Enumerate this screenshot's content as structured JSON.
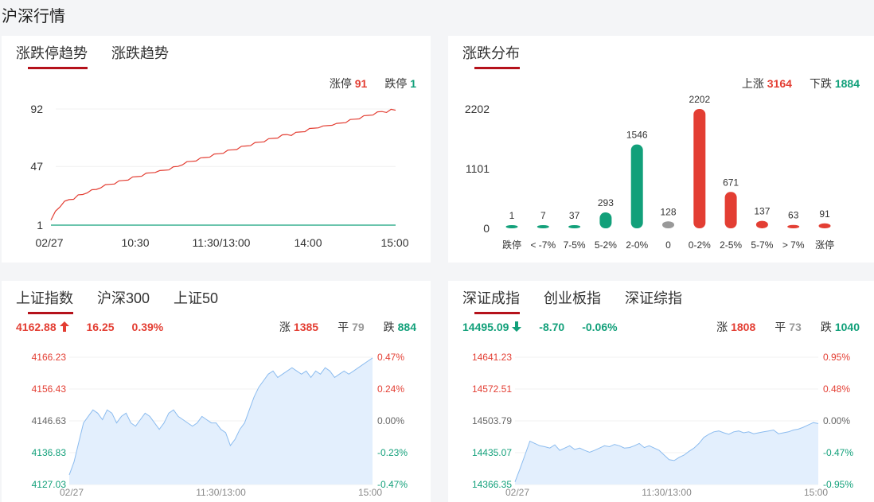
{
  "page_title": "沪深行情",
  "panel1": {
    "tabs": [
      {
        "label": "涨跌停趋势"
      },
      {
        "label": "涨跌趋势"
      }
    ],
    "counts": {
      "limit_up_label": "涨停",
      "limit_up": "91",
      "limit_down_label": "跌停",
      "limit_down": "1"
    },
    "colors": {
      "up": "#e33e33",
      "down": "#12a07a"
    }
  },
  "panel2": {
    "tabs": [
      {
        "label": "涨跌分布"
      }
    ],
    "counts": {
      "up_label": "上涨",
      "up": "3164",
      "down_label": "下跌",
      "down": "1884"
    }
  },
  "panel3": {
    "tabs": [
      {
        "label": "上证指数"
      },
      {
        "label": "沪深300"
      },
      {
        "label": "上证50"
      }
    ],
    "price": "4162.88",
    "arrow": "up-arrow-icon",
    "change": "16.25",
    "pct": "0.39%",
    "up_label": "涨",
    "up": "1385",
    "flat_label": "平",
    "flat": "79",
    "down_label": "跌",
    "down": "884"
  },
  "panel4": {
    "tabs": [
      {
        "label": "深证成指"
      },
      {
        "label": "创业板指"
      },
      {
        "label": "深证综指"
      }
    ],
    "price": "14495.09",
    "arrow": "down-arrow-icon",
    "change": "-8.70",
    "pct": "-0.06%",
    "up_label": "涨",
    "up": "1808",
    "flat_label": "平",
    "flat": "73",
    "down_label": "跌",
    "down": "1040"
  },
  "chart_data": [
    {
      "type": "line",
      "x_ticks": [
        "02/27",
        "10:30",
        "11:30/13:00",
        "14:00",
        "15:00"
      ],
      "y_ticks": [
        "92",
        "47",
        "1"
      ],
      "ylim": [
        1,
        92
      ],
      "series": [
        {
          "name": "涨停",
          "color": "#e33e33",
          "values": [
            5,
            12,
            16,
            19,
            21,
            22,
            24,
            25,
            27,
            28,
            29,
            31,
            32,
            33,
            34,
            35,
            36,
            37,
            38,
            39,
            40,
            41,
            42,
            43,
            43,
            44,
            45,
            46,
            47,
            49,
            50,
            51,
            52,
            53,
            54,
            55,
            56,
            57,
            58,
            59,
            60,
            61,
            62,
            63,
            64,
            65,
            66,
            67,
            68,
            69,
            70,
            71,
            72,
            72,
            73,
            74,
            75,
            76,
            77,
            78,
            78,
            79,
            80,
            80,
            81,
            82,
            83,
            84,
            85,
            86,
            87,
            88,
            89,
            90,
            90,
            91,
            91
          ]
        },
        {
          "name": "跌停",
          "color": "#12a07a",
          "values": [
            1,
            1,
            1,
            1,
            1,
            1,
            1,
            1,
            1,
            1,
            1,
            1,
            1,
            1,
            1,
            1,
            1,
            1,
            1,
            1,
            1,
            1,
            1,
            1,
            1,
            1,
            1,
            1,
            1,
            1,
            1,
            1,
            1,
            1,
            1,
            1,
            1,
            1,
            1,
            1,
            1,
            1,
            1,
            1,
            1,
            1,
            1,
            1,
            1,
            1,
            1,
            1,
            1,
            1,
            1,
            1,
            1,
            1,
            1,
            1,
            1,
            1,
            1,
            1,
            1,
            1,
            1,
            1,
            1,
            1,
            1,
            1,
            1,
            1,
            1,
            1,
            1
          ]
        }
      ]
    },
    {
      "type": "bar",
      "categories": [
        "跌停",
        "< -7%",
        "7-5%",
        "5-2%",
        "2-0%",
        "0",
        "0-2%",
        "2-5%",
        "5-7%",
        "> 7%",
        "涨停"
      ],
      "values": [
        1,
        7,
        37,
        293,
        1546,
        128,
        2202,
        671,
        137,
        63,
        91
      ],
      "colors": [
        "#12a07a",
        "#12a07a",
        "#12a07a",
        "#12a07a",
        "#12a07a",
        "#999999",
        "#e33e33",
        "#e33e33",
        "#e33e33",
        "#e33e33",
        "#e33e33"
      ],
      "y_ticks": [
        "2202",
        "1101",
        "0"
      ],
      "ylim": [
        0,
        2202
      ]
    },
    {
      "type": "area",
      "x_ticks": [
        "02/27",
        "11:30/13:00",
        "15:00"
      ],
      "y_left": [
        "4166.23",
        "4156.43",
        "4146.63",
        "4136.83",
        "4127.03"
      ],
      "y_right": [
        "0.47%",
        "0.24%",
        "0.00%",
        "-0.23%",
        "-0.47%"
      ],
      "ylim": [
        4127.03,
        4166.23
      ],
      "values": [
        4130,
        4134,
        4140,
        4146,
        4148,
        4150,
        4149,
        4147,
        4150,
        4149,
        4146,
        4148,
        4149,
        4146,
        4145,
        4147,
        4149,
        4148,
        4146,
        4144,
        4146,
        4149,
        4150,
        4148,
        4147,
        4146,
        4145,
        4146,
        4148,
        4147,
        4146,
        4146,
        4144,
        4143,
        4139,
        4141,
        4144,
        4146,
        4150,
        4154,
        4157,
        4159,
        4161,
        4162,
        4160,
        4161,
        4162,
        4163,
        4162,
        4161,
        4162,
        4160,
        4162,
        4161,
        4163,
        4162,
        4160,
        4161,
        4162,
        4161,
        4162,
        4163,
        4164,
        4165,
        4166
      ]
    },
    {
      "type": "area",
      "x_ticks": [
        "02/27",
        "11:30/13:00",
        "15:00"
      ],
      "y_left": [
        "14641.23",
        "14572.51",
        "14503.79",
        "14435.07",
        "14366.35"
      ],
      "y_right": [
        "0.95%",
        "0.48%",
        "0.00%",
        "-0.47%",
        "-0.95%"
      ],
      "ylim": [
        14366.35,
        14641.23
      ],
      "values": [
        14372,
        14400,
        14430,
        14460,
        14455,
        14450,
        14448,
        14445,
        14452,
        14440,
        14445,
        14450,
        14442,
        14445,
        14440,
        14436,
        14440,
        14445,
        14450,
        14448,
        14453,
        14450,
        14445,
        14446,
        14450,
        14455,
        14446,
        14450,
        14445,
        14440,
        14430,
        14420,
        14418,
        14425,
        14430,
        14438,
        14445,
        14455,
        14468,
        14475,
        14480,
        14482,
        14478,
        14475,
        14480,
        14482,
        14478,
        14480,
        14476,
        14478,
        14480,
        14482,
        14484,
        14476,
        14478,
        14480,
        14484,
        14486,
        14490,
        14495,
        14500,
        14498
      ]
    }
  ]
}
